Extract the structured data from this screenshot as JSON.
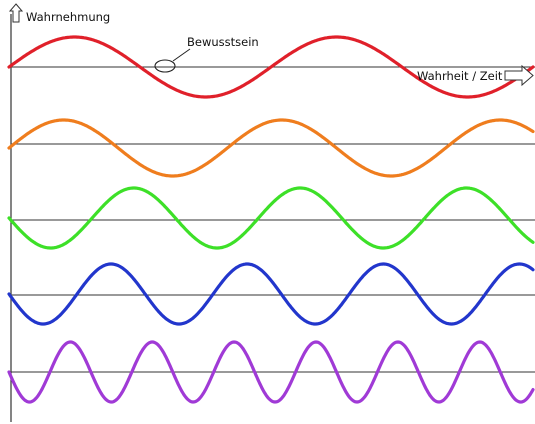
{
  "axis": {
    "y_label": "Wahrnehmung",
    "x_label": "Wahrheit / Zeit"
  },
  "annotation": {
    "text": "Bewusstsein"
  },
  "colors": {
    "axis": "#333333",
    "baseline": "#333333",
    "arrow_fill": "#ffffff"
  },
  "waves": [
    {
      "id": "red",
      "color": "#e0202a",
      "cycles": 2.0,
      "phase_sign": 1
    },
    {
      "id": "orange",
      "color": "#ef7d1e",
      "cycles": 2.4,
      "phase_sign": 1
    },
    {
      "id": "green",
      "color": "#3de028",
      "cycles": 3.15,
      "phase_sign": -1
    },
    {
      "id": "blue",
      "color": "#2236cc",
      "cycles": 3.85,
      "phase_sign": -1
    },
    {
      "id": "purple",
      "color": "#a03ad6",
      "cycles": 6.4,
      "phase_sign": -1
    }
  ]
}
